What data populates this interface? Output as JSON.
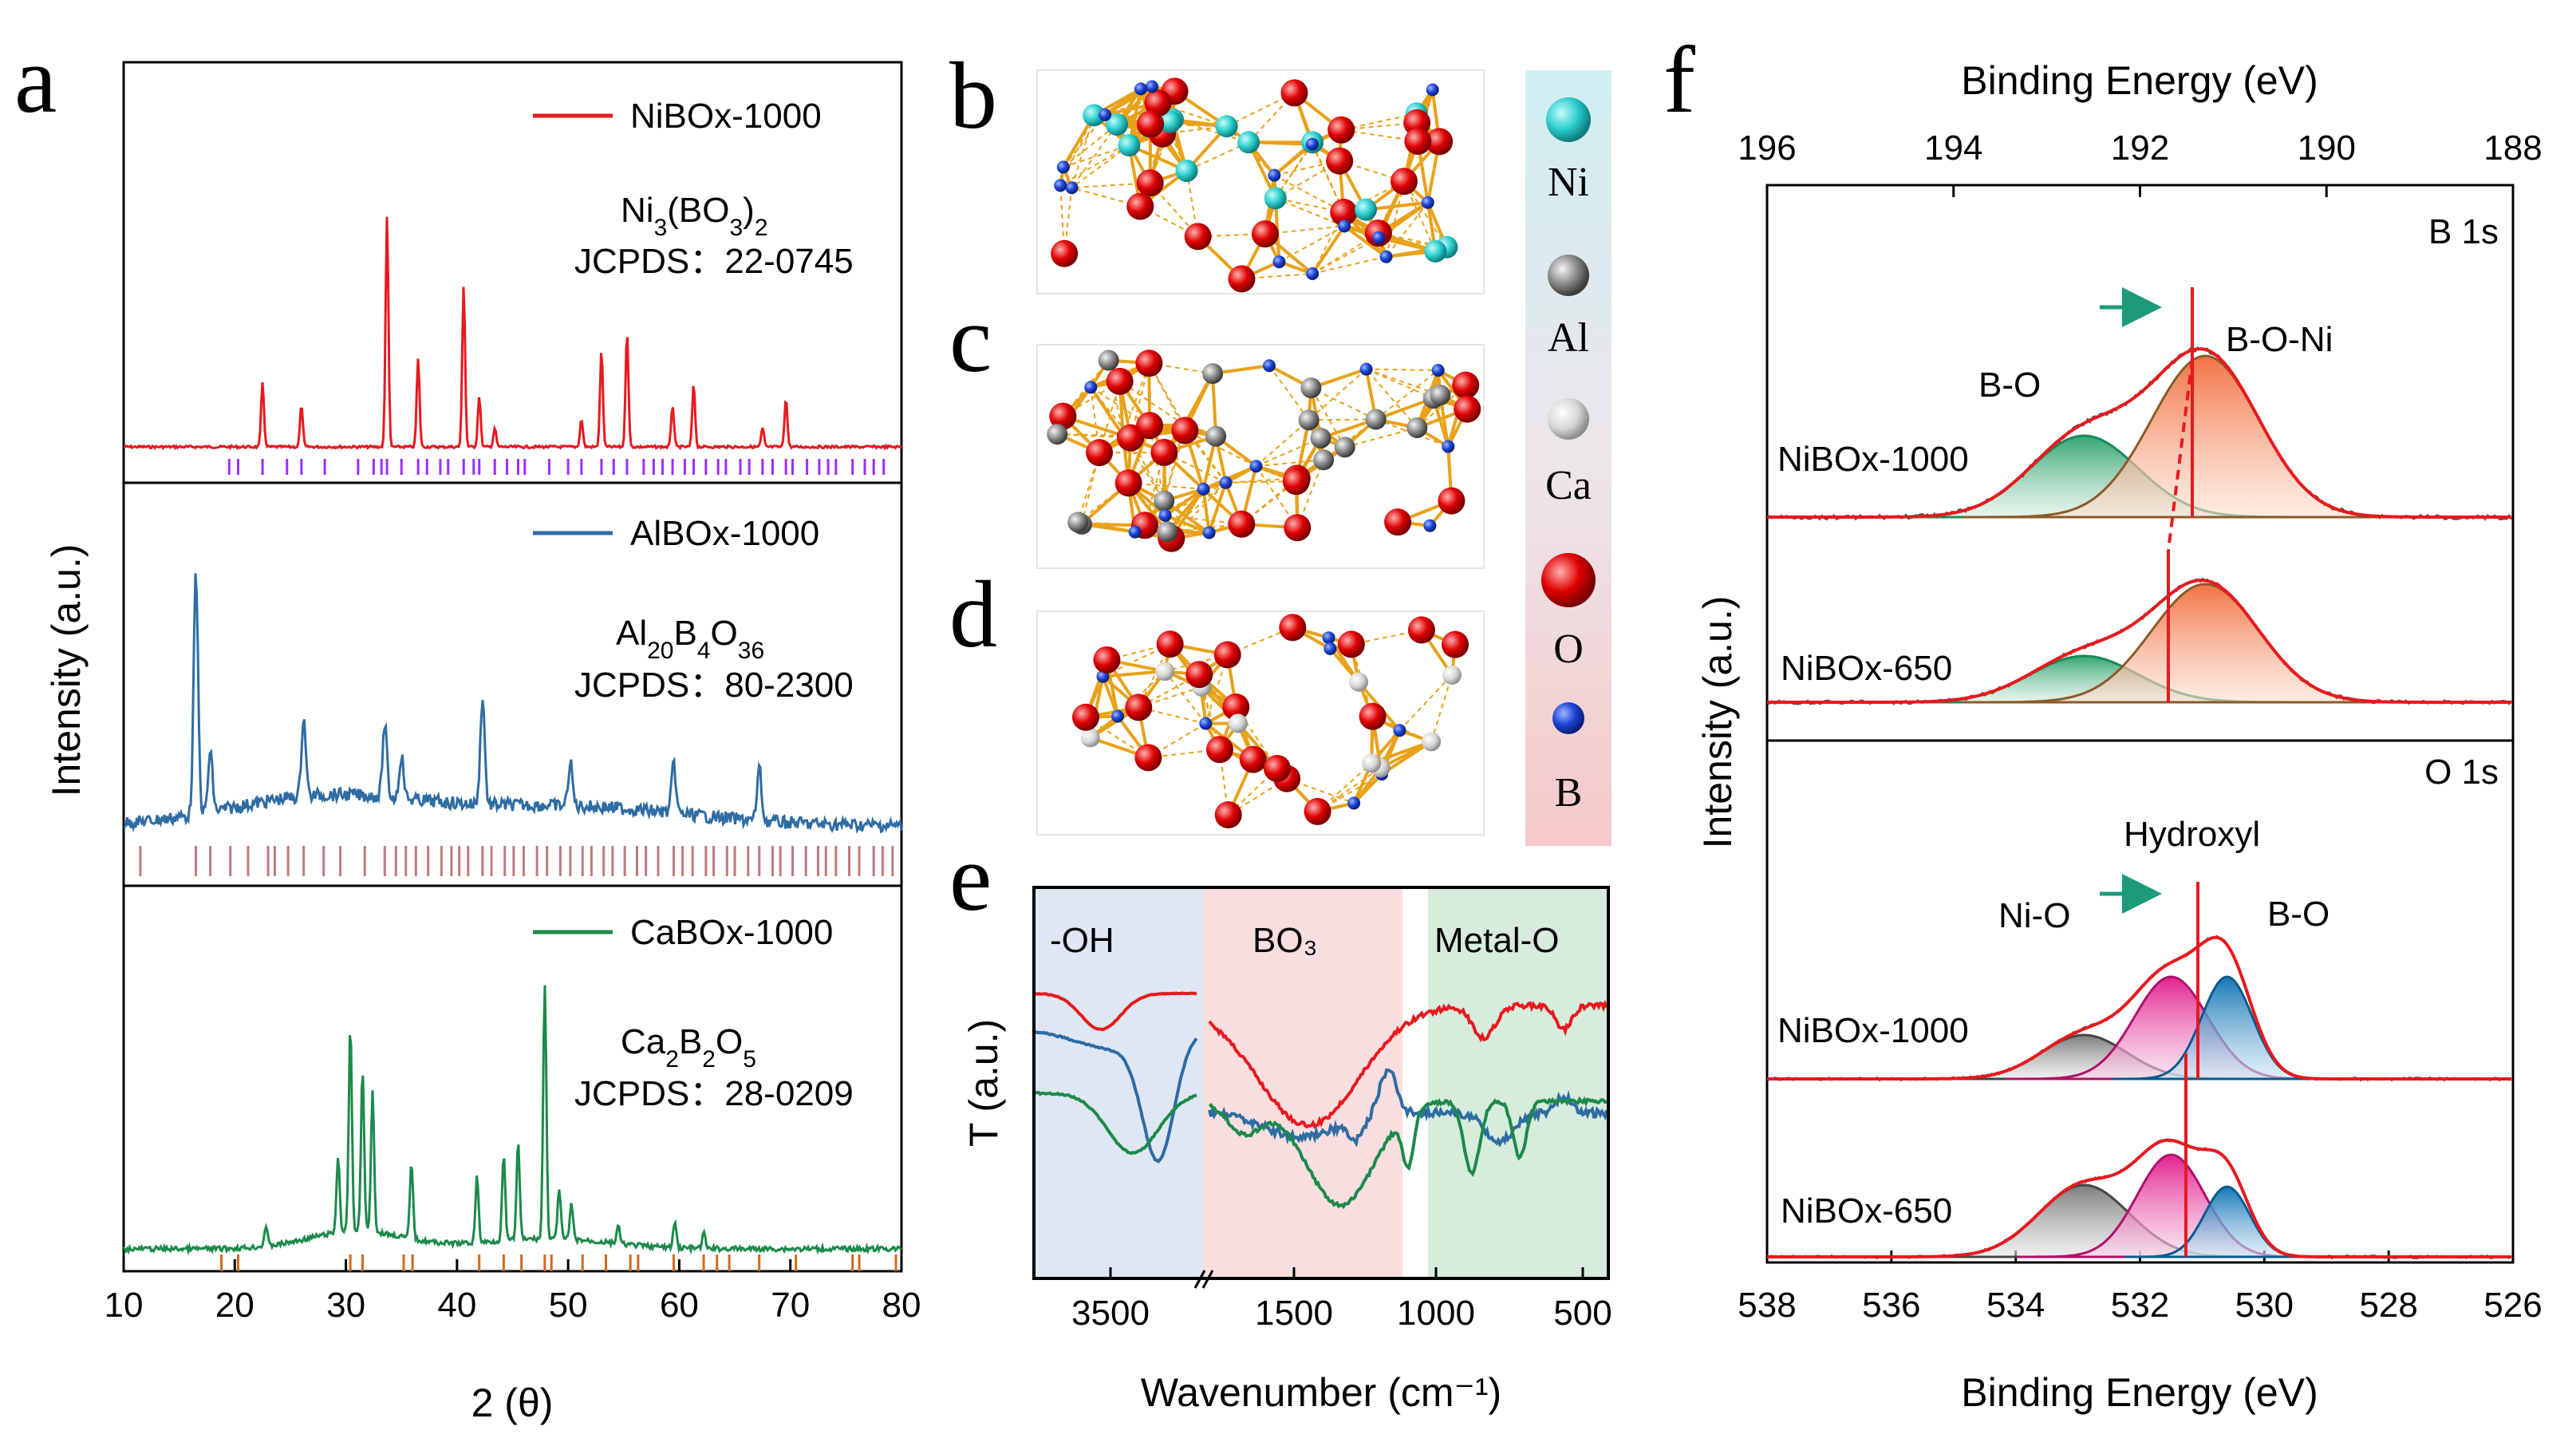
{
  "panel_labels": {
    "a": "a",
    "b": "b",
    "c": "c",
    "d": "d",
    "e": "e",
    "f": "f"
  },
  "chart_data": [
    {
      "id": "a",
      "type": "line",
      "title": "",
      "xlabel": "2 (θ)",
      "ylabel": "Intensity (a.u.)",
      "xlim": [
        10,
        80
      ],
      "xticks": [
        "10",
        "20",
        "30",
        "40",
        "50",
        "60",
        "70",
        "80"
      ],
      "colors": {
        "NiBOx-1000": "#e8191e",
        "AlBOx-1000": "#2e6ca4",
        "CaBOx-1000": "#1c8a4a",
        "ref1": "#9b30ff",
        "ref2": "#c07b7b",
        "ref3": "#d2691e"
      },
      "subplots": [
        {
          "series": "NiBOx-1000",
          "phase_html": "Ni<tspan baseline-shift=\"sub\" font-size=\"30\">3</tspan>(BO<tspan baseline-shift=\"sub\" font-size=\"30\">3</tspan>)<tspan baseline-shift=\"sub\" font-size=\"30\">2</tspan>",
          "phase": "Ni3(BO3)2",
          "jcpds": "JCPDS：22-0745",
          "peaks": [
            [
              22.5,
              0.28
            ],
            [
              26.0,
              0.18
            ],
            [
              33.7,
              1.0
            ],
            [
              36.5,
              0.38
            ],
            [
              40.6,
              0.7
            ],
            [
              42.0,
              0.22
            ],
            [
              43.4,
              0.08
            ],
            [
              51.2,
              0.12
            ],
            [
              53.0,
              0.42
            ],
            [
              55.3,
              0.5
            ],
            [
              59.4,
              0.18
            ],
            [
              61.3,
              0.27
            ],
            [
              67.5,
              0.08
            ],
            [
              69.6,
              0.21
            ]
          ],
          "refs": [
            19.5,
            20.3,
            22.5,
            24.7,
            26.0,
            28.1,
            31.1,
            32.5,
            33.2,
            33.7,
            35.0,
            36.5,
            37.3,
            38.5,
            39.2,
            40.6,
            41.5,
            42.0,
            43.4,
            44.5,
            45.5,
            46.1,
            48.3,
            50.0,
            51.2,
            53.0,
            54.1,
            55.3,
            56.8,
            57.7,
            58.5,
            59.4,
            60.5,
            61.3,
            62.4,
            63.5,
            64.2,
            65.5,
            66.3,
            67.5,
            68.4,
            69.6,
            70.2,
            71.5,
            72.6,
            73.4,
            74.1,
            75.6,
            76.7,
            77.5,
            78.4
          ]
        },
        {
          "series": "AlBOx-1000",
          "phase_html": "Al<tspan baseline-shift=\"sub\" font-size=\"30\">20</tspan>B<tspan baseline-shift=\"sub\" font-size=\"30\">4</tspan>O<tspan baseline-shift=\"sub\" font-size=\"30\">36</tspan>",
          "phase": "Al20B4O36",
          "jcpds": "JCPDS：80-2300",
          "peaks": [
            [
              16.5,
              1.0
            ],
            [
              17.8,
              0.25
            ],
            [
              26.2,
              0.33
            ],
            [
              33.5,
              0.3
            ],
            [
              35.0,
              0.18
            ],
            [
              42.3,
              0.45
            ],
            [
              50.2,
              0.18
            ],
            [
              59.5,
              0.2
            ],
            [
              67.2,
              0.22
            ]
          ],
          "refs": [
            11.5,
            16.5,
            17.8,
            19.6,
            21.2,
            23.0,
            23.6,
            24.8,
            26.2,
            28.0,
            29.5,
            31.7,
            33.5,
            34.5,
            35.4,
            36.3,
            37.4,
            38.6,
            39.5,
            40.2,
            41.0,
            42.3,
            43.1,
            44.3,
            45.1,
            46.0,
            47.2,
            48.1,
            49.3,
            50.2,
            51.3,
            52.1,
            53.2,
            54.0,
            55.1,
            56.2,
            57.0,
            58.1,
            59.5,
            60.3,
            61.2,
            62.4,
            63.1,
            64.3,
            65.0,
            66.2,
            67.2,
            68.4,
            69.1,
            70.2,
            71.4,
            72.5,
            73.2,
            74.1,
            75.3,
            76.2,
            77.5,
            78.3,
            79.2
          ]
        },
        {
          "series": "CaBOx-1000",
          "phase_html": "Ca<tspan baseline-shift=\"sub\" font-size=\"30\">2</tspan>B<tspan baseline-shift=\"sub\" font-size=\"30\">2</tspan>O<tspan baseline-shift=\"sub\" font-size=\"30\">5</tspan>",
          "phase": "Ca2B2O5",
          "jcpds": "JCPDS：28-0209",
          "peaks": [
            [
              22.8,
              0.08
            ],
            [
              29.3,
              0.3
            ],
            [
              30.4,
              0.8
            ],
            [
              31.5,
              0.63
            ],
            [
              32.4,
              0.55
            ],
            [
              35.9,
              0.3
            ],
            [
              41.8,
              0.26
            ],
            [
              44.2,
              0.33
            ],
            [
              45.5,
              0.38
            ],
            [
              47.9,
              1.0
            ],
            [
              49.2,
              0.2
            ],
            [
              50.3,
              0.14
            ],
            [
              54.5,
              0.07
            ],
            [
              59.6,
              0.1
            ],
            [
              62.2,
              0.06
            ]
          ],
          "refs": [
            18.8,
            20.3,
            30.4,
            31.5,
            35.2,
            36.0,
            42.0,
            44.2,
            45.8,
            47.9,
            48.5,
            51.3,
            53.4,
            55.6,
            56.3,
            59.5,
            62.2,
            63.4,
            64.5,
            67.2,
            70.5,
            75.6,
            76.2,
            79.5
          ]
        }
      ]
    },
    {
      "id": "e",
      "type": "line",
      "xlabel": "Wavenumber (cm⁻¹)",
      "ylabel": "T (a.u.)",
      "regions": [
        "-OH",
        "BO₃",
        "Metal-O"
      ],
      "xticks": [
        "3500",
        "1500",
        "1000",
        "500"
      ],
      "series": [
        {
          "name": "NiBOx-1000",
          "color": "#e8191e"
        },
        {
          "name": "AlBOx-1000",
          "color": "#2e6ca4"
        },
        {
          "name": "CaBOx-1000",
          "color": "#1c8a4a"
        }
      ]
    },
    {
      "id": "f",
      "type": "line",
      "xlabel": "Binding Energy (eV)",
      "xlabel_top": "Binding Energy (eV)",
      "ylabel": "Intensity (a.u.)",
      "xticks_top": [
        "196",
        "194",
        "192",
        "190",
        "188"
      ],
      "xticks_bottom": [
        "538",
        "536",
        "534",
        "532",
        "530",
        "528",
        "526"
      ],
      "b1s": {
        "label": "B 1s",
        "components": [
          "B-O",
          "B-O-Ni"
        ],
        "series": [
          "NiBOx-1000",
          "NiBOx-650"
        ],
        "centers_eV": {
          "B-O": 192.6,
          "B-O-Ni": 191.3
        }
      },
      "o1s": {
        "label": "O 1s",
        "components": [
          "Ni-O",
          "Hydroxyl",
          "B-O"
        ],
        "series": [
          "NiBOx-1000",
          "NiBOx-650"
        ],
        "centers_eV": {
          "Ni-O": 532.9,
          "Hydroxyl": 531.5,
          "B-O": 530.6
        }
      }
    }
  ],
  "legend_elements": [
    "Ni",
    "Al",
    "Ca",
    "O",
    "B"
  ]
}
